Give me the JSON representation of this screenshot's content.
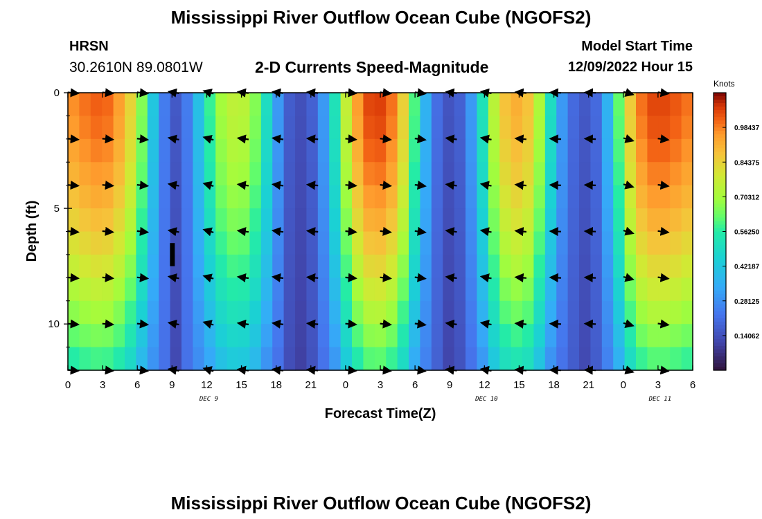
{
  "header": {
    "title": "Mississippi River Outflow Ocean Cube (NGOFS2)",
    "station_id": "HRSN",
    "station_coords": "30.2610N  89.0801W",
    "plot_subtitle": "2-D Currents Speed-Magnitude",
    "model_start_label": "Model Start Time",
    "model_start_value": "12/09/2022 Hour 15"
  },
  "footer": {
    "title": "Mississippi River Outflow Ocean Cube (NGOFS2)"
  },
  "chart_data": {
    "type": "heatmap",
    "xlabel": "Forecast Time(Z)",
    "ylabel": "Depth (ft)",
    "x_tick_labels": [
      "0",
      "3",
      "6",
      "9",
      "12",
      "15",
      "18",
      "21",
      "0",
      "3",
      "6",
      "9",
      "12",
      "15",
      "18",
      "21",
      "0",
      "3",
      "6"
    ],
    "date_labels": [
      {
        "label": "DEC 9",
        "tick_index": 4
      },
      {
        "label": "DEC 10",
        "tick_index": 12
      },
      {
        "label": "DEC 11",
        "tick_index": 17
      }
    ],
    "x_range_hours": [
      0,
      54
    ],
    "y_ticks": [
      "0",
      "5",
      "10"
    ],
    "y_range_ft": [
      0,
      12
    ],
    "y_inverted": true,
    "colorbar": {
      "label": "Knots",
      "tick_labels": [
        "0.98437",
        "0.84375",
        "0.70312",
        "0.56250",
        "0.42187",
        "0.28125",
        "0.14062"
      ],
      "tick_values": [
        0.98437,
        0.84375,
        0.70312,
        0.5625,
        0.42187,
        0.28125,
        0.14062
      ],
      "range": [
        0,
        1.125
      ],
      "colormap": "turbo"
    },
    "surface_speed_profile": {
      "hours": [
        0,
        1,
        2,
        3,
        4,
        5,
        6,
        7,
        8,
        9,
        10,
        11,
        12,
        13,
        14,
        15,
        16,
        17,
        18,
        19,
        20,
        21,
        22,
        23,
        24,
        25,
        26,
        27,
        28,
        29,
        30,
        31,
        32,
        33,
        34,
        35,
        36,
        37,
        38,
        39,
        40,
        41,
        42,
        43,
        44,
        45,
        46,
        47,
        48,
        49,
        50,
        51,
        52,
        53,
        54
      ],
      "knots": [
        0.97,
        1.0,
        1.02,
        1.01,
        0.95,
        0.84,
        0.66,
        0.42,
        0.24,
        0.16,
        0.24,
        0.4,
        0.58,
        0.7,
        0.75,
        0.74,
        0.66,
        0.5,
        0.3,
        0.17,
        0.14,
        0.18,
        0.3,
        0.52,
        0.76,
        0.95,
        1.05,
        1.06,
        1.0,
        0.85,
        0.6,
        0.36,
        0.21,
        0.15,
        0.18,
        0.3,
        0.52,
        0.74,
        0.88,
        0.92,
        0.88,
        0.72,
        0.5,
        0.3,
        0.2,
        0.16,
        0.2,
        0.36,
        0.62,
        0.86,
        1.0,
        1.05,
        1.05,
        1.03,
        1.0
      ]
    },
    "bottom_speed_factor": 0.55,
    "vector_depths_ft": [
      0,
      2,
      4,
      6,
      8,
      10,
      12
    ],
    "vector_hours": [
      0,
      3,
      6,
      9,
      12,
      15,
      18,
      21,
      24,
      27,
      30,
      33,
      36,
      39,
      42,
      45,
      48,
      51
    ],
    "vector_dir_deg": [
      10,
      10,
      12,
      200,
      210,
      195,
      195,
      190,
      10,
      12,
      15,
      195,
      200,
      190,
      185,
      185,
      30,
      15
    ],
    "missing_cell": {
      "hour": 9,
      "depth_ft_from": 6.5,
      "depth_ft_to": 7.5
    }
  }
}
